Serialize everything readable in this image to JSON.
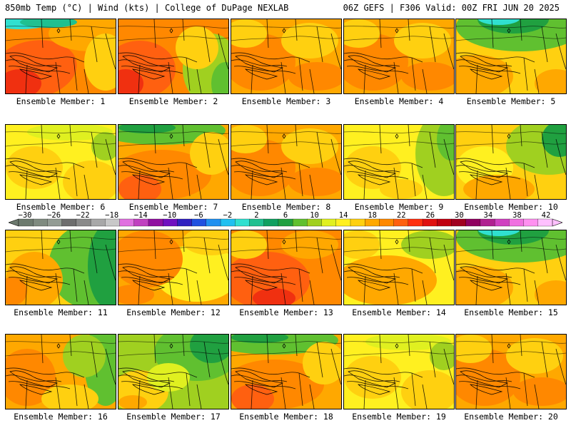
{
  "header": {
    "left": "850mb Temp (°C) | Wind (kts) | College of DuPage NEXLAB",
    "right": "06Z GEFS | F306 Valid: 00Z FRI JUN 20 2025"
  },
  "panels": [
    {
      "label": "Ensemble Member: 1",
      "scheme": "hot_cool_top"
    },
    {
      "label": "Ensemble Member: 2",
      "scheme": "hot_green_east"
    },
    {
      "label": "Ensemble Member: 3",
      "scheme": "warm_orange"
    },
    {
      "label": "Ensemble Member: 4",
      "scheme": "warm_orange"
    },
    {
      "label": "Ensemble Member: 5",
      "scheme": "green_north"
    },
    {
      "label": "Ensemble Member: 6",
      "scheme": "yellow_mild"
    },
    {
      "label": "Ensemble Member: 7",
      "scheme": "orange_green_north"
    },
    {
      "label": "Ensemble Member: 8",
      "scheme": "warm_orange"
    },
    {
      "label": "Ensemble Member: 9",
      "scheme": "yellow_green_east"
    },
    {
      "label": "Ensemble Member: 10",
      "scheme": "yellow_green_ne"
    },
    {
      "label": "Ensemble Member: 11",
      "scheme": "green_east_band"
    },
    {
      "label": "Ensemble Member: 12",
      "scheme": "orange_yellow"
    },
    {
      "label": "Ensemble Member: 13",
      "scheme": "hot_orange"
    },
    {
      "label": "Ensemble Member: 14",
      "scheme": "yellow_orange"
    },
    {
      "label": "Ensemble Member: 15",
      "scheme": "green_north"
    },
    {
      "label": "Ensemble Member: 16",
      "scheme": "orange_green_east"
    },
    {
      "label": "Ensemble Member: 17",
      "scheme": "green_heavy"
    },
    {
      "label": "Ensemble Member: 18",
      "scheme": "orange_green_north"
    },
    {
      "label": "Ensemble Member: 19",
      "scheme": "yellow_mild"
    },
    {
      "label": "Ensemble Member: 20",
      "scheme": "warm_orange"
    }
  ],
  "colorbar": {
    "labels": [
      "−30",
      "−26",
      "−22",
      "−18",
      "−14",
      "−10",
      "−6",
      "−2",
      "2",
      "6",
      "10",
      "14",
      "18",
      "22",
      "26",
      "30",
      "34",
      "38",
      "42"
    ],
    "colors": [
      "#6c7a6e",
      "#7f8b80",
      "#939c94",
      "#6e6e6e",
      "#8a8a8a",
      "#a8a8a8",
      "#c8c8c8",
      "#e070e0",
      "#c040c0",
      "#9010a0",
      "#7010c0",
      "#3020c0",
      "#2050e0",
      "#2090f0",
      "#20c0f0",
      "#30e0d0",
      "#20c090",
      "#10a060",
      "#20a040",
      "#60c030",
      "#a0d020",
      "#e0f020",
      "#fff020",
      "#ffd010",
      "#ffa800",
      "#ff8800",
      "#ff6010",
      "#ff3010",
      "#e01010",
      "#c00010",
      "#a00020",
      "#900060",
      "#b02090",
      "#d040c0",
      "#f070e0",
      "#ff90f0",
      "#ffc0ff"
    ]
  }
}
